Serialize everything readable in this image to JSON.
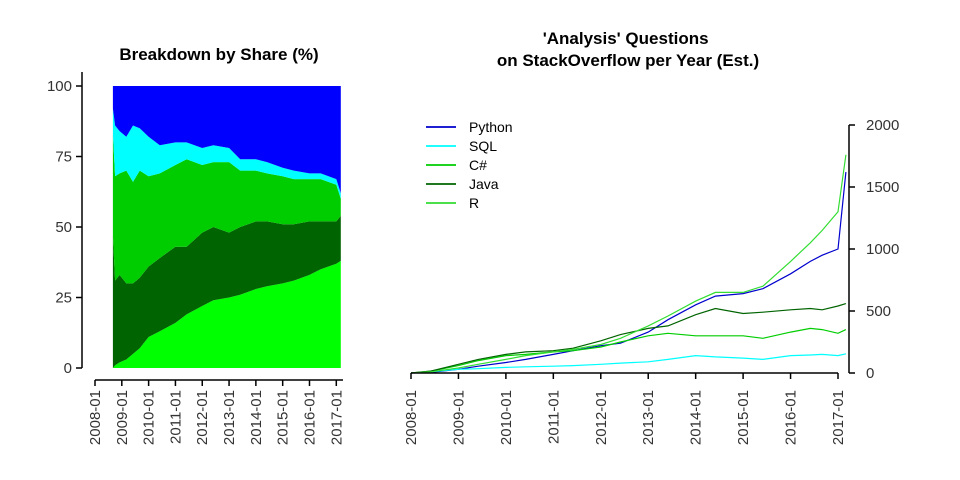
{
  "chart_data": [
    {
      "type": "area",
      "stacked": true,
      "title": "Breakdown by Share (%)",
      "xlabel": "",
      "ylabel": "",
      "ylim": [
        0,
        100
      ],
      "yticks": [
        "0",
        "25",
        "50",
        "75",
        "100"
      ],
      "xticks": [
        "2008-01",
        "2009-01",
        "2010-01",
        "2011-01",
        "2012-01",
        "2013-01",
        "2014-01",
        "2015-01",
        "2016-01",
        "2017-01"
      ],
      "x": [
        "2008-09",
        "2008-10",
        "2008-12",
        "2009-03",
        "2009-06",
        "2009-09",
        "2010-01",
        "2010-06",
        "2011-01",
        "2011-06",
        "2012-01",
        "2012-06",
        "2013-01",
        "2013-06",
        "2014-01",
        "2014-06",
        "2015-01",
        "2015-06",
        "2016-01",
        "2016-06",
        "2017-01",
        "2017-03"
      ],
      "series": [
        {
          "color": "#00ff00",
          "values": [
            0,
            1,
            2,
            3,
            5,
            7,
            11,
            13,
            16,
            19,
            22,
            24,
            25,
            26,
            28,
            29,
            30,
            31,
            33,
            35,
            37,
            38
          ]
        },
        {
          "color": "#006400",
          "values": [
            47,
            30,
            31,
            27,
            25,
            25,
            25,
            26,
            27,
            24,
            26,
            26,
            23,
            24,
            24,
            23,
            21,
            20,
            19,
            17,
            15,
            16
          ]
        },
        {
          "color": "#00cd00",
          "values": [
            36,
            37,
            36,
            40,
            36,
            38,
            32,
            30,
            29,
            31,
            24,
            23,
            25,
            20,
            18,
            17,
            17,
            16,
            15,
            15,
            13,
            6
          ]
        },
        {
          "color": "#00ffff",
          "values": [
            9,
            18,
            15,
            12,
            20,
            15,
            14,
            10,
            8,
            6,
            6,
            6,
            5,
            4,
            4,
            4,
            3,
            3,
            2,
            2,
            2,
            2
          ]
        },
        {
          "color": "#0000ff",
          "values": [
            8,
            14,
            16,
            18,
            14,
            15,
            18,
            21,
            20,
            20,
            22,
            21,
            22,
            26,
            26,
            27,
            29,
            30,
            31,
            31,
            33,
            38
          ]
        }
      ]
    },
    {
      "type": "line",
      "title": "'Analysis' Questions\non StackOverflow per Year (Est.)",
      "xlabel": "",
      "ylabel": "",
      "ylim": [
        0,
        2000
      ],
      "yticks": [
        "0",
        "500",
        "1000",
        "1500",
        "2000"
      ],
      "xticks": [
        "2008-01",
        "2009-01",
        "2010-01",
        "2011-01",
        "2012-01",
        "2013-01",
        "2014-01",
        "2015-01",
        "2016-01",
        "2017-01"
      ],
      "legend": {
        "position": "top-left",
        "entries": [
          "Python",
          "SQL",
          "C#",
          "Java",
          "R"
        ]
      },
      "x": [
        "2008-01",
        "2008-06",
        "2009-01",
        "2009-06",
        "2010-01",
        "2010-06",
        "2011-01",
        "2011-06",
        "2012-01",
        "2012-06",
        "2013-01",
        "2013-06",
        "2014-01",
        "2014-06",
        "2015-01",
        "2015-06",
        "2016-01",
        "2016-06",
        "2016-09",
        "2017-01",
        "2017-03"
      ],
      "series": [
        {
          "name": "Python",
          "color": "#0000cd",
          "values": [
            0,
            5,
            30,
            55,
            85,
            110,
            150,
            180,
            220,
            240,
            330,
            430,
            550,
            620,
            640,
            680,
            800,
            900,
            950,
            1000,
            1620
          ]
        },
        {
          "name": "SQL",
          "color": "#00ffff",
          "values": [
            0,
            10,
            30,
            35,
            45,
            50,
            55,
            60,
            70,
            80,
            90,
            110,
            140,
            130,
            120,
            110,
            140,
            145,
            150,
            140,
            155
          ]
        },
        {
          "name": "C#",
          "color": "#00cd00",
          "values": [
            0,
            15,
            60,
            100,
            140,
            150,
            170,
            180,
            210,
            250,
            300,
            320,
            300,
            300,
            300,
            280,
            330,
            360,
            350,
            320,
            350
          ]
        },
        {
          "name": "Java",
          "color": "#006400",
          "values": [
            0,
            15,
            70,
            110,
            150,
            170,
            180,
            200,
            260,
            310,
            360,
            380,
            470,
            520,
            480,
            490,
            510,
            520,
            510,
            540,
            560
          ]
        },
        {
          "name": "R",
          "color": "#33dd33",
          "values": [
            0,
            10,
            40,
            70,
            110,
            140,
            170,
            190,
            230,
            280,
            380,
            460,
            580,
            650,
            650,
            700,
            900,
            1050,
            1150,
            1300,
            1760
          ]
        }
      ]
    }
  ]
}
